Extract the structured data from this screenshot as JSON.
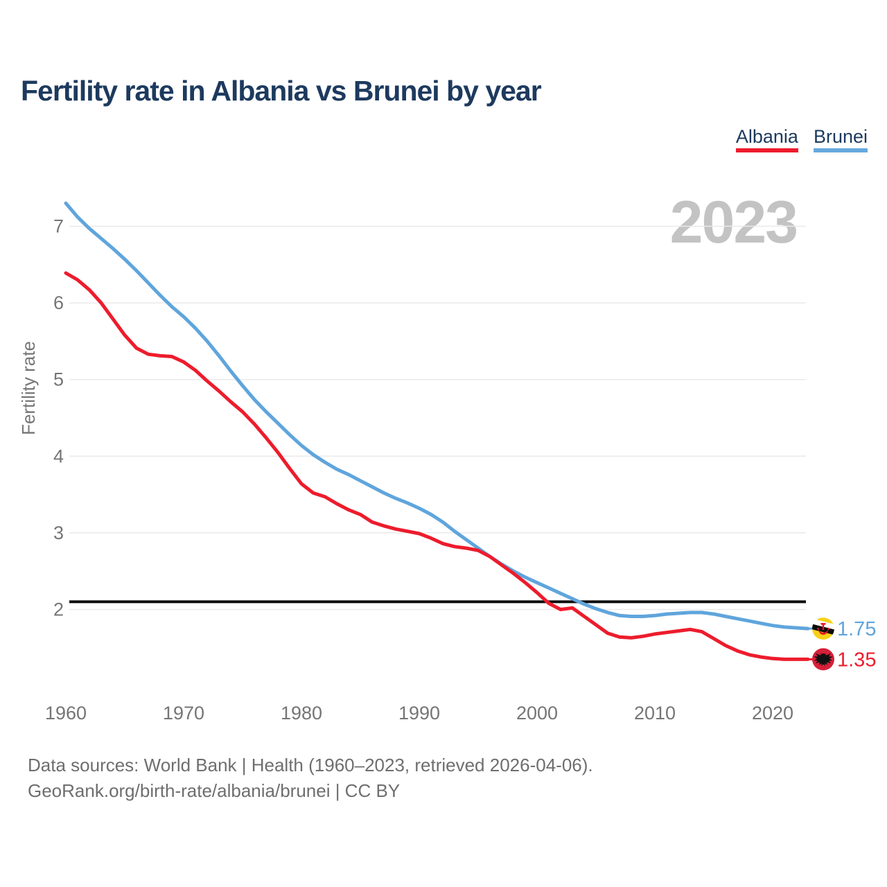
{
  "title": "Fertility rate in Albania vs Brunei by year",
  "watermark": "2023",
  "legend": [
    {
      "label": "Albania",
      "color": "#ed1c2c"
    },
    {
      "label": "Brunei",
      "color": "#64a9de"
    }
  ],
  "y_axis": {
    "label": "Fertility rate",
    "ticks": [
      2,
      3,
      4,
      5,
      6,
      7
    ]
  },
  "x_axis": {
    "ticks": [
      1960,
      1970,
      1980,
      1990,
      2000,
      2010,
      2020
    ]
  },
  "reference_line": {
    "value": 2.1,
    "color": "#0a0a0a"
  },
  "end_labels": [
    {
      "series": "Brunei",
      "value": "1.75",
      "color": "#5fa5dc",
      "flag": "brunei-flag"
    },
    {
      "series": "Albania",
      "value": "1.35",
      "color": "#ed1c2c",
      "flag": "albania-flag"
    }
  ],
  "footer": {
    "line1": "Data sources: World Bank | Health (1960–2023, retrieved 2026-04-06).",
    "line2": "GeoRank.org/birth-rate/albania/brunei | CC BY"
  },
  "colors": {
    "title": "#1d3a5e",
    "albania_red": "#ed1c2c",
    "brunei_blue": "#5fa5dc",
    "grid": "#eaeaea",
    "axis_text": "#757575",
    "watermark": "#c3c3c3",
    "footer_text": "#6e6e6e",
    "brunei_flag_yellow": "#f7d118",
    "albania_flag_red": "#d62039"
  },
  "chart_data": {
    "type": "line",
    "title": "Fertility rate in Albania vs Brunei by year",
    "xlabel": "",
    "ylabel": "Fertility rate",
    "xlim": [
      1960,
      2023
    ],
    "ylim": [
      1.2,
      7.45
    ],
    "grid": true,
    "legend_position": "top-right",
    "annotations": {
      "replacement_level_line": 2.1,
      "watermark": "2023"
    },
    "years": [
      1960,
      1961,
      1962,
      1963,
      1964,
      1965,
      1966,
      1967,
      1968,
      1969,
      1970,
      1971,
      1972,
      1973,
      1974,
      1975,
      1976,
      1977,
      1978,
      1979,
      1980,
      1981,
      1982,
      1983,
      1984,
      1985,
      1986,
      1987,
      1988,
      1989,
      1990,
      1991,
      1992,
      1993,
      1994,
      1995,
      1996,
      1997,
      1998,
      1999,
      2000,
      2001,
      2002,
      2003,
      2004,
      2005,
      2006,
      2007,
      2008,
      2009,
      2010,
      2011,
      2012,
      2013,
      2014,
      2015,
      2016,
      2017,
      2018,
      2019,
      2020,
      2021,
      2022,
      2023
    ],
    "series": [
      {
        "name": "Brunei",
        "color": "#5fa5dc",
        "values": [
          7.3,
          7.12,
          6.97,
          6.84,
          6.71,
          6.57,
          6.42,
          6.26,
          6.1,
          5.95,
          5.82,
          5.67,
          5.5,
          5.31,
          5.11,
          4.92,
          4.74,
          4.58,
          4.43,
          4.28,
          4.14,
          4.02,
          3.92,
          3.83,
          3.76,
          3.68,
          3.6,
          3.52,
          3.45,
          3.39,
          3.32,
          3.24,
          3.14,
          3.02,
          2.91,
          2.8,
          2.69,
          2.59,
          2.5,
          2.42,
          2.35,
          2.28,
          2.21,
          2.14,
          2.07,
          2.01,
          1.96,
          1.92,
          1.91,
          1.91,
          1.92,
          1.94,
          1.95,
          1.96,
          1.96,
          1.94,
          1.91,
          1.88,
          1.85,
          1.82,
          1.79,
          1.77,
          1.76,
          1.75
        ]
      },
      {
        "name": "Albania",
        "color": "#ed1c2c",
        "values": [
          6.39,
          6.3,
          6.17,
          6.0,
          5.79,
          5.58,
          5.41,
          5.33,
          5.31,
          5.3,
          5.23,
          5.12,
          4.98,
          4.85,
          4.71,
          4.58,
          4.42,
          4.24,
          4.05,
          3.84,
          3.64,
          3.52,
          3.47,
          3.38,
          3.3,
          3.24,
          3.14,
          3.09,
          3.05,
          3.02,
          2.99,
          2.93,
          2.86,
          2.82,
          2.8,
          2.77,
          2.69,
          2.58,
          2.47,
          2.35,
          2.22,
          2.08,
          2.0,
          2.02,
          1.91,
          1.8,
          1.69,
          1.64,
          1.63,
          1.65,
          1.68,
          1.7,
          1.72,
          1.74,
          1.71,
          1.62,
          1.53,
          1.46,
          1.41,
          1.38,
          1.36,
          1.35,
          1.35,
          1.35
        ]
      }
    ]
  }
}
